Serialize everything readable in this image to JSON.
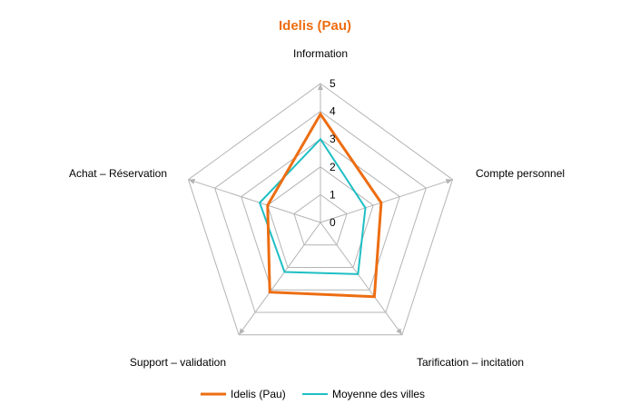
{
  "chart_data": {
    "type": "radar",
    "title": "Idelis (Pau)",
    "categories": [
      "Information",
      "Compte personnel",
      "Tarification – incitation",
      "Support – validation",
      "Achat – Réservation"
    ],
    "rmin": 0,
    "rmax": 5,
    "ticks": [
      "0",
      "1",
      "2",
      "3",
      "4",
      "5"
    ],
    "grid": true,
    "legend_position": "bottom",
    "series": [
      {
        "name": "Idelis (Pau)",
        "values": [
          3.9,
          2.3,
          3.3,
          3.1,
          2.0
        ],
        "color": "#ED6D12"
      },
      {
        "name": "Moyenne des villes",
        "values": [
          3.0,
          1.7,
          2.3,
          2.2,
          2.3
        ],
        "color": "#1EBFC4"
      }
    ],
    "colors": {
      "title": "#ED6D12",
      "grid": "#B4B4B4"
    }
  }
}
